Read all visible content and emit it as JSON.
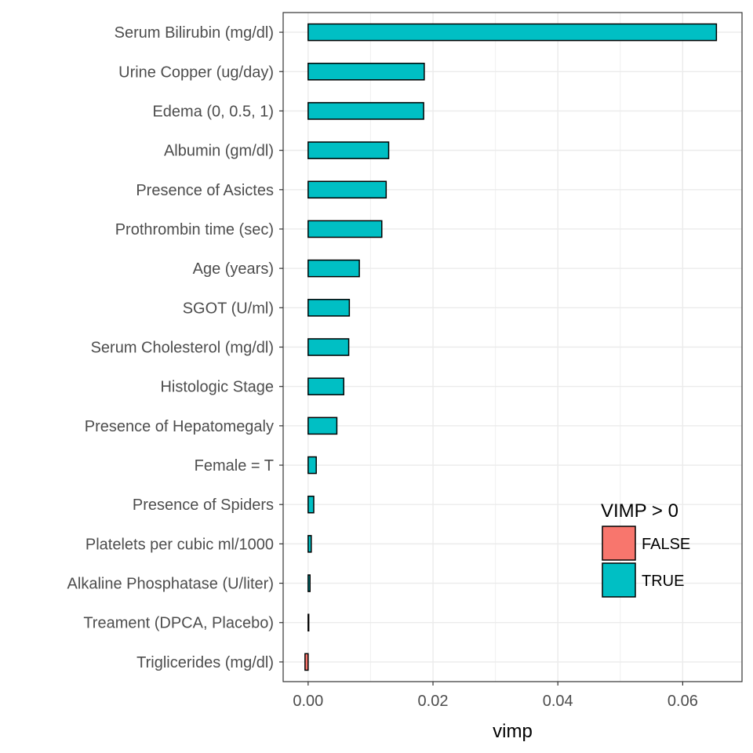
{
  "chart_data": {
    "type": "bar",
    "orientation": "horizontal",
    "categories": [
      "Serum Bilirubin (mg/dl)",
      "Urine Copper (ug/day)",
      "Edema (0, 0.5, 1)",
      "Albumin (gm/dl)",
      "Presence of Asictes",
      "Prothrombin time (sec)",
      "Age (years)",
      "SGOT (U/ml)",
      "Serum Cholesterol (mg/dl)",
      "Histologic Stage",
      "Presence of Hepatomegaly",
      "Female = T",
      "Presence of Spiders",
      "Platelets per cubic ml/1000",
      "Alkaline Phosphatase (U/liter)",
      "Treament (DPCA, Placebo)",
      "Triglicerides (mg/dl)"
    ],
    "values": [
      0.0654,
      0.0186,
      0.0185,
      0.0129,
      0.0125,
      0.0118,
      0.0082,
      0.0066,
      0.0065,
      0.0057,
      0.0046,
      0.0013,
      0.0009,
      0.0005,
      0.0003,
      0.0001,
      -0.0005
    ],
    "fill_group": [
      "TRUE",
      "TRUE",
      "TRUE",
      "TRUE",
      "TRUE",
      "TRUE",
      "TRUE",
      "TRUE",
      "TRUE",
      "TRUE",
      "TRUE",
      "TRUE",
      "TRUE",
      "TRUE",
      "TRUE",
      "TRUE",
      "FALSE"
    ],
    "xlabel": "vimp",
    "ylabel": "",
    "xlim": [
      -0.004,
      0.0695
    ],
    "xticks": [
      0.0,
      0.02,
      0.04,
      0.06
    ],
    "xtick_labels": [
      "0.00",
      "0.02",
      "0.04",
      "0.06"
    ],
    "grid": true,
    "legend": {
      "title": "VIMP > 0",
      "placement": "bottom-right inside",
      "entries": [
        {
          "label": "FALSE",
          "color": "#F8766D"
        },
        {
          "label": "TRUE",
          "color": "#00BFC4"
        }
      ]
    },
    "colors": {
      "FALSE": "#F8766D",
      "TRUE": "#00BFC4"
    }
  }
}
